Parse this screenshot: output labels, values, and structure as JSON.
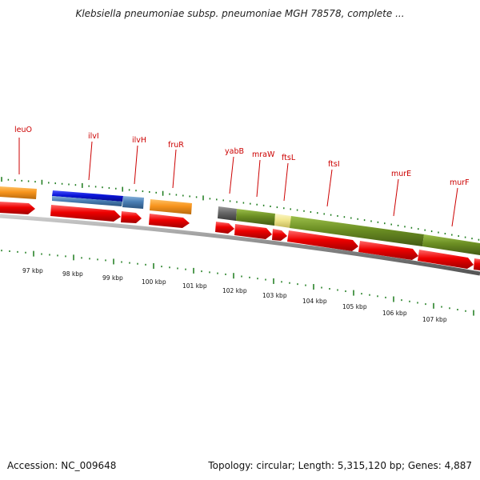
{
  "title": "Klebsiella pneumoniae subsp. pneumoniae MGH 78578, complete ...",
  "footer": {
    "accession": "Accession: NC_009648",
    "summary": "Topology: circular; Length: 5,315,120 bp; Genes: 4,887"
  },
  "scale": {
    "unit": "kbp",
    "ticks": [
      97,
      98,
      99,
      100,
      101,
      102,
      103,
      104,
      105,
      106,
      107
    ]
  },
  "genes": [
    "leuO",
    "ilvI",
    "ilvH",
    "fruR",
    "yabB",
    "mraW",
    "ftsL",
    "ftsI",
    "murE",
    "murF"
  ],
  "colors": {
    "orange": "#f7941d",
    "blue": "#0a14d8",
    "steel_blue": "#4a7fb5",
    "gray": "#666666",
    "olive": "#6b8e23",
    "pale_yellow": "#f0e68c",
    "red": "#ee0000",
    "tick_green": "#1a7a1a",
    "label_red": "#cc0000"
  }
}
